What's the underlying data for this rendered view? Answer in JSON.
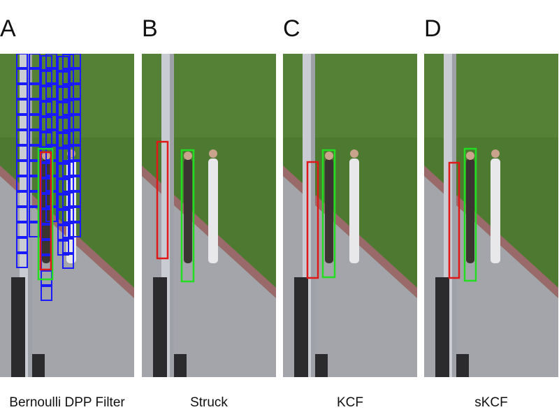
{
  "panels": [
    {
      "letter": "A",
      "caption": "Bernoulli DPP Filter"
    },
    {
      "letter": "B",
      "caption": "Struck"
    },
    {
      "letter": "C",
      "caption": "KCF"
    },
    {
      "letter": "D",
      "caption": "sKCF"
    }
  ]
}
